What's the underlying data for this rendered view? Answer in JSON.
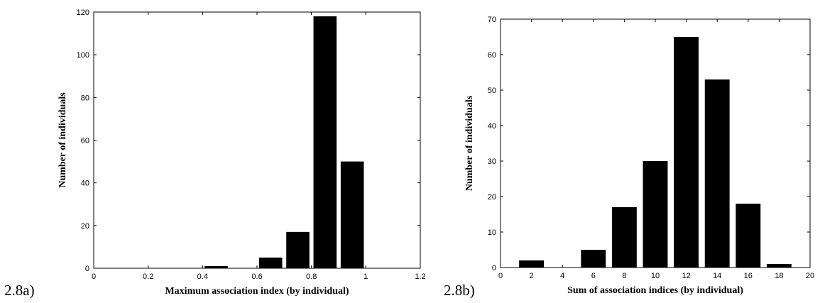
{
  "panels": [
    {
      "label": "2.8a)"
    },
    {
      "label": "2.8b)"
    }
  ],
  "chart_data": [
    {
      "type": "bar",
      "title": "",
      "xlabel": "Maximum association index (by individual)",
      "ylabel": "Number of individuals",
      "xlim": [
        0,
        1.2
      ],
      "ylim": [
        0,
        120
      ],
      "xticks": [
        0,
        0.2,
        0.4,
        0.6,
        0.8,
        1,
        1.2
      ],
      "yticks": [
        0,
        20,
        40,
        60,
        80,
        100,
        120
      ],
      "bar_width": 0.085,
      "bar_color": "#000000",
      "x": [
        0.45,
        0.55,
        0.65,
        0.75,
        0.85,
        0.95
      ],
      "values": [
        1,
        0,
        5,
        17,
        118,
        50
      ],
      "grid": false
    },
    {
      "type": "bar",
      "title": "",
      "xlabel": "Sum of association indices (by individual)",
      "ylabel": "Number of individuals",
      "xlim": [
        0,
        20
      ],
      "ylim": [
        0,
        70
      ],
      "xticks": [
        0,
        2,
        4,
        6,
        8,
        10,
        12,
        14,
        16,
        18,
        20
      ],
      "yticks": [
        0,
        10,
        20,
        30,
        40,
        50,
        60,
        70
      ],
      "bar_width": 1.6,
      "bar_color": "#000000",
      "x": [
        2,
        4,
        6,
        8,
        10,
        12,
        14,
        16,
        18
      ],
      "values": [
        2,
        0,
        5,
        17,
        30,
        65,
        53,
        18,
        1
      ],
      "grid": false
    }
  ]
}
